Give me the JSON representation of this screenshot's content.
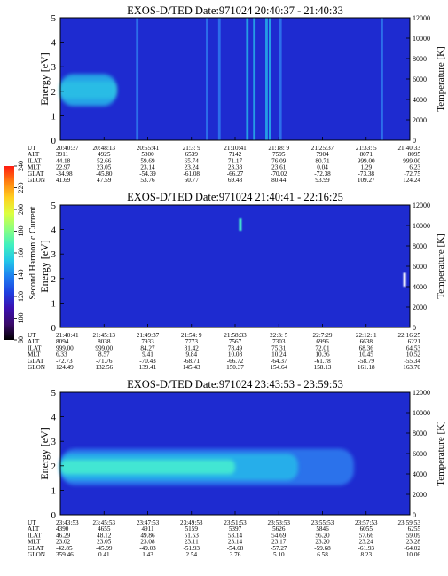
{
  "colors": {
    "background_plasma": "#1e2bd0",
    "frame": "#000000",
    "colorbar_stops": [
      "#000000",
      "#3a0a6a",
      "#3b10b0",
      "#1f3fe0",
      "#1e7ef0",
      "#22c7e8",
      "#40f0c0",
      "#8cff80",
      "#dcff40",
      "#ffd020",
      "#ff8010",
      "#ff1a10"
    ]
  },
  "colorbar": {
    "label": "Second Harmonic Current",
    "ticks": [
      "240",
      "220",
      "200",
      "180",
      "160",
      "140",
      "120",
      "100",
      "80"
    ]
  },
  "chart_data": [
    {
      "type": "heatmap",
      "title": "EXOS-D/TED   Date:971024   20:40:37 - 21:40:33",
      "ylabel": "Energy [eV]",
      "y2label": "Temperature [K]",
      "ylim": [
        0,
        5
      ],
      "y2lim": [
        0,
        12000
      ],
      "yticks": [
        "0",
        "1",
        "2",
        "3",
        "4",
        "5"
      ],
      "y2ticks": [
        "0",
        "2000",
        "4000",
        "6000",
        "8000",
        "10000",
        "12000"
      ],
      "features": [
        {
          "kind": "band",
          "x_start": 0.0,
          "x_end": 0.16,
          "e_center": 2.05,
          "e_half": 0.35,
          "intensity": "high"
        },
        {
          "kind": "band",
          "x_start": 0.0,
          "x_end": 0.16,
          "e_center": 2.05,
          "e_half": 0.65,
          "intensity": "medium"
        },
        {
          "kind": "vline",
          "x": 0.22,
          "intensity": "low"
        },
        {
          "kind": "vline",
          "x": 0.42,
          "intensity": "low"
        },
        {
          "kind": "vline",
          "x": 0.455,
          "intensity": "low"
        },
        {
          "kind": "vline",
          "x": 0.535,
          "intensity": "medium"
        },
        {
          "kind": "vline",
          "x": 0.555,
          "intensity": "medium"
        },
        {
          "kind": "vline",
          "x": 0.59,
          "intensity": "medium"
        },
        {
          "kind": "vline",
          "x": 0.6,
          "intensity": "medium"
        },
        {
          "kind": "vline",
          "x": 0.63,
          "intensity": "low"
        },
        {
          "kind": "vline",
          "x": 0.92,
          "intensity": "low"
        }
      ],
      "table": {
        "labels": [
          "UT",
          "ALT",
          "ILAT",
          "MLT",
          "GLAT",
          "GLON"
        ],
        "columns": [
          [
            "20:40:37",
            "3911",
            "44.18",
            "22.97",
            "-34.98",
            "41.69"
          ],
          [
            "20:48:13",
            "4925",
            "52.66",
            "23.05",
            "-45.80",
            "47.59"
          ],
          [
            "20:55:41",
            "5800",
            "59.69",
            "23.14",
            "-54.39",
            "53.76"
          ],
          [
            "21:3: 9",
            "6539",
            "65.74",
            "23.24",
            "-61.08",
            "60.77"
          ],
          [
            "21:10:41",
            "7142",
            "71.17",
            "23.38",
            "-66.27",
            "69.48"
          ],
          [
            "21:18: 9",
            "7595",
            "76.09",
            "23.61",
            "-70.02",
            "80.44"
          ],
          [
            "21:25:37",
            "7904",
            "80.71",
            "0.04",
            "-72.38",
            "93.99"
          ],
          [
            "21:33: 5",
            "8071",
            "999.00",
            "1.29",
            "-73.38",
            "109.27"
          ],
          [
            "21:40:33",
            "8095",
            "999.00",
            "6.23",
            "-72.75",
            "124.24"
          ]
        ]
      }
    },
    {
      "type": "heatmap",
      "title": "EXOS-D/TED   Date:971024   21:40:41 - 22:16:25",
      "ylabel": "Energy [eV]",
      "y2label": "Temperature [K]",
      "ylim": [
        0,
        5
      ],
      "y2lim": [
        0,
        12000
      ],
      "yticks": [
        "0",
        "1",
        "2",
        "3",
        "4",
        "5"
      ],
      "y2ticks": [
        "0",
        "2000",
        "4000",
        "6000",
        "8000",
        "10000",
        "12000"
      ],
      "features": [
        {
          "kind": "spot",
          "x": 0.515,
          "e_center": 4.2,
          "e_half": 0.25,
          "intensity": "high"
        },
        {
          "kind": "spot",
          "x": 0.985,
          "e_center": 1.95,
          "e_half": 0.28,
          "intensity": "max"
        }
      ],
      "table": {
        "labels": [
          "UT",
          "ALT",
          "ILAT",
          "MLT",
          "GLAT",
          "GLON"
        ],
        "columns": [
          [
            "21:40:41",
            "8094",
            "999.00",
            "6.33",
            "-72.73",
            "124.49"
          ],
          [
            "21:45:13",
            "8038",
            "999.00",
            "8.57",
            "-71.76",
            "132.56"
          ],
          [
            "21:49:37",
            "7933",
            "84.27",
            "9.41",
            "-70.43",
            "139.41"
          ],
          [
            "21:54: 9",
            "7773",
            "81.42",
            "9.84",
            "-68.71",
            "145.43"
          ],
          [
            "21:58:33",
            "7567",
            "78.49",
            "10.08",
            "-66.72",
            "150.37"
          ],
          [
            "22:3: 5",
            "7303",
            "75.31",
            "10.24",
            "-64.37",
            "154.64"
          ],
          [
            "22:7:29",
            "6996",
            "72.01",
            "10.36",
            "-61.78",
            "158.13"
          ],
          [
            "22:12: 1",
            "6638",
            "68.36",
            "10.45",
            "-58.79",
            "161.18"
          ],
          [
            "22:16:25",
            "6221",
            "64.53",
            "10.52",
            "-55.34",
            "163.70"
          ]
        ]
      }
    },
    {
      "type": "heatmap",
      "title": "EXOS-D/TED   Date:971024   23:43:53 - 23:59:53",
      "ylabel": "Energy [eV]",
      "y2label": "Temperature [K]",
      "ylim": [
        0,
        5
      ],
      "y2lim": [
        0,
        12000
      ],
      "yticks": [
        "0",
        "1",
        "2",
        "3",
        "4",
        "5"
      ],
      "y2ticks": [
        "0",
        "2000",
        "4000",
        "6000",
        "8000",
        "10000",
        "12000"
      ],
      "features": [
        {
          "kind": "band",
          "x_start": 0.0,
          "x_end": 0.84,
          "e_center": 1.95,
          "e_half": 0.75,
          "intensity": "low"
        },
        {
          "kind": "band",
          "x_start": 0.0,
          "x_end": 0.68,
          "e_center": 1.95,
          "e_half": 0.55,
          "intensity": "medium"
        },
        {
          "kind": "band",
          "x_start": 0.0,
          "x_end": 0.5,
          "e_center": 1.95,
          "e_half": 0.3,
          "intensity": "high"
        }
      ],
      "table": {
        "labels": [
          "UT",
          "ALT",
          "ILAT",
          "MLT",
          "GLAT",
          "GLON"
        ],
        "columns": [
          [
            "23:43:53",
            "4390",
            "46.29",
            "23.02",
            "-42.85",
            "359.46"
          ],
          [
            "23:45:53",
            "4655",
            "48.12",
            "23.05",
            "-45.99",
            "0.41"
          ],
          [
            "23:47:53",
            "4911",
            "49.86",
            "23.08",
            "-49.03",
            "1.43"
          ],
          [
            "23:49:53",
            "5159",
            "51.53",
            "23.11",
            "-51.93",
            "2.54"
          ],
          [
            "23:51:53",
            "5397",
            "53.14",
            "23.14",
            "-54.68",
            "3.76"
          ],
          [
            "23:53:53",
            "5626",
            "54.69",
            "23.17",
            "-57.27",
            "5.10"
          ],
          [
            "23:55:53",
            "5846",
            "56.20",
            "23.20",
            "-59.68",
            "6.58"
          ],
          [
            "23:57:53",
            "6055",
            "57.66",
            "23.24",
            "-61.93",
            "8.23"
          ],
          [
            "23:59:53",
            "6255",
            "59.09",
            "23.28",
            "-64.02",
            "10.06"
          ]
        ]
      }
    }
  ]
}
